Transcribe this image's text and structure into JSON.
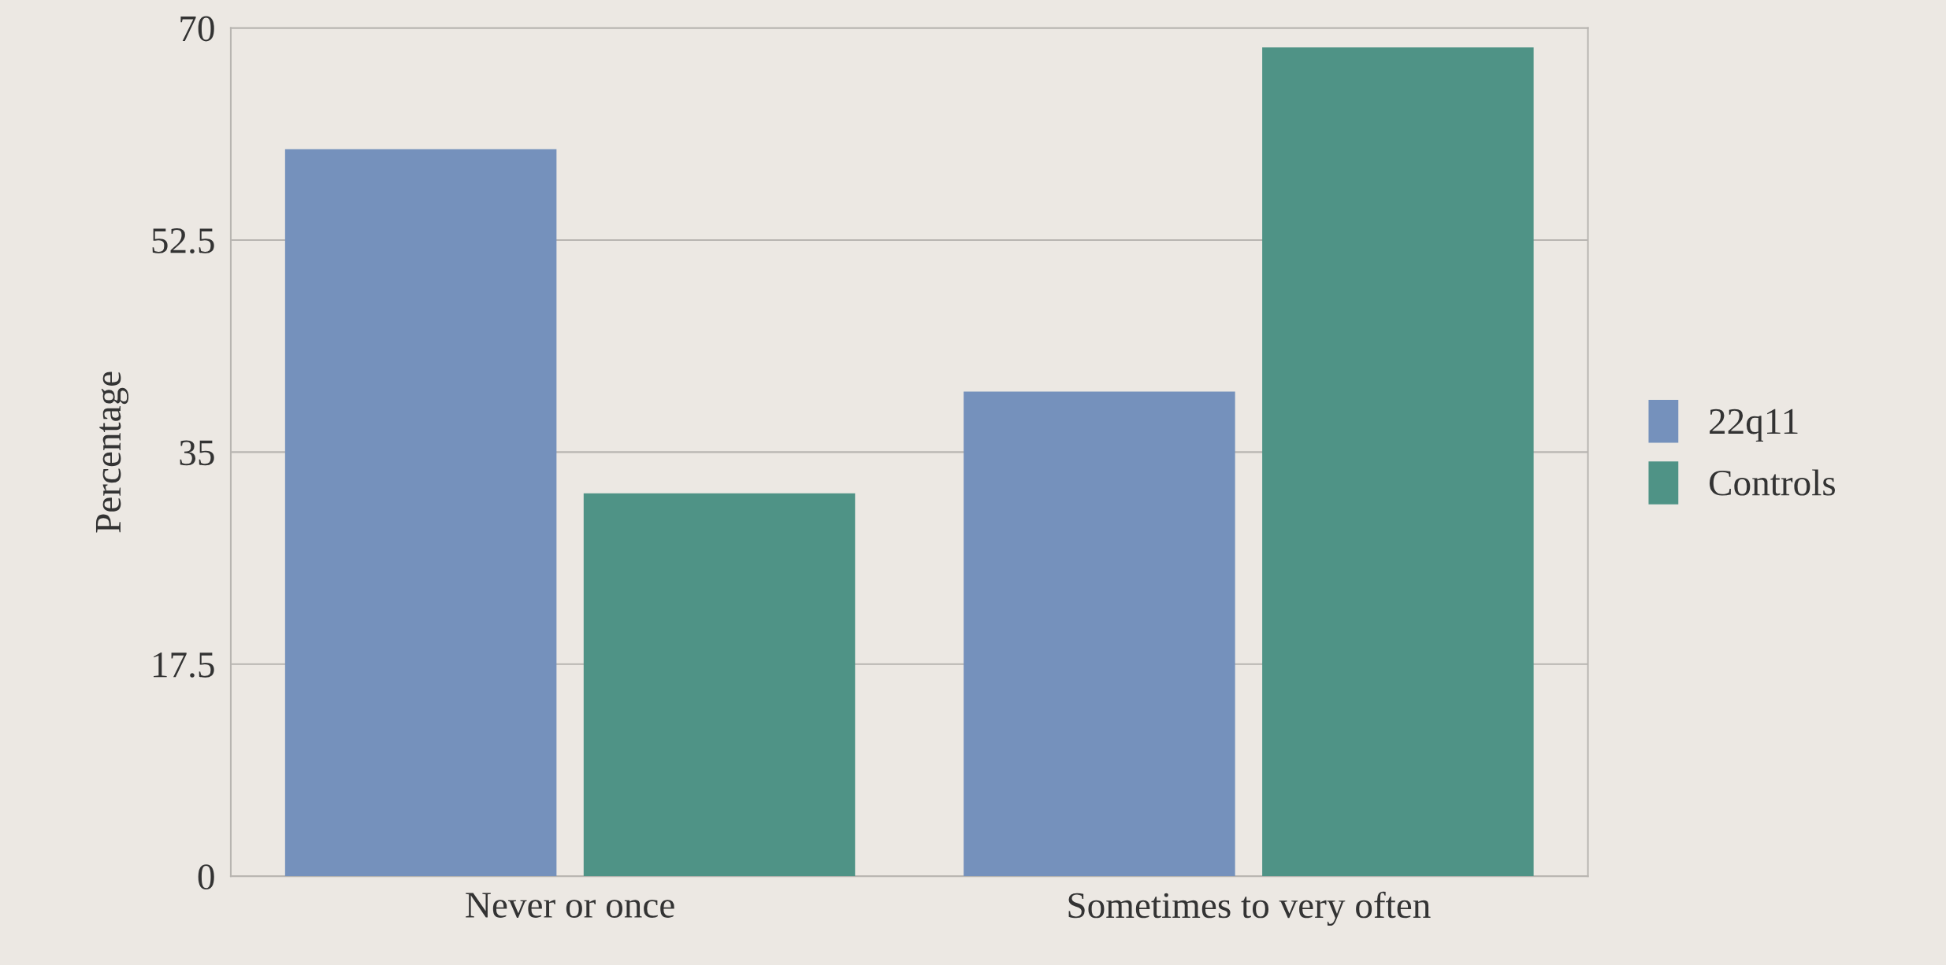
{
  "chart_data": {
    "type": "bar",
    "ylabel": "Percentage",
    "categories": [
      "Never or once",
      "Sometimes to very often"
    ],
    "series": [
      {
        "name": "22q11",
        "color": "#7591bc",
        "values": [
          60,
          40
        ]
      },
      {
        "name": "Controls",
        "color": "#4f9386",
        "values": [
          31.6,
          68.4
        ]
      }
    ],
    "ylim": [
      0,
      70
    ],
    "yticks": [
      0,
      17.5,
      35,
      52.5,
      70
    ],
    "grid": "y",
    "legend": "right"
  }
}
